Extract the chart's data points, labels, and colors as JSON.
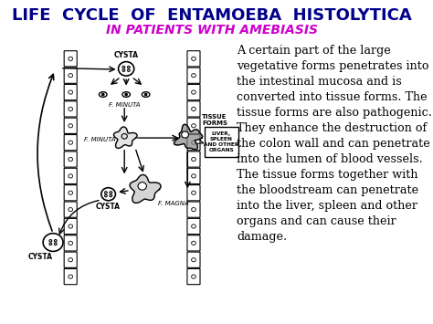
{
  "title": "LIFE  CYCLE  OF  ENTAMOEBA  HISTOLYTICA",
  "subtitle": "IN PATIENTS WITH AMEBIASIS",
  "title_color": "#00008B",
  "subtitle_color": "#CC00CC",
  "body_text": "A certain part of the large vegetative forms penetrates into the intestinal mucosa and is converted into tissue forms. The tissue forms are also pathogenic. They enhance the destruction of the colon wall and can penetrate into the lumen of blood vessels. The tissue forms together with the bloodstream can penetrate into the liver, spleen and other organs and can cause their  damage.",
  "labels": {
    "cysta_top": "CYSTA",
    "f_minuta_top": "F. MINUTA",
    "f_minuta_mid": "F. MINUTA",
    "cysta_bottom_left": "CYSTA",
    "cysta_bottom_mid": "CYSTA",
    "f_magna": "F. MAGNA",
    "tissue_forms": "TISSUE\nFORMS",
    "liver_box": "LIVER,\nSPLEEN\nAND OTHER\nORGANS"
  },
  "bg_color": "#FFFFFF",
  "text_color": "#000000",
  "title_fontsize": 13,
  "subtitle_fontsize": 10,
  "body_fontsize": 9.2
}
